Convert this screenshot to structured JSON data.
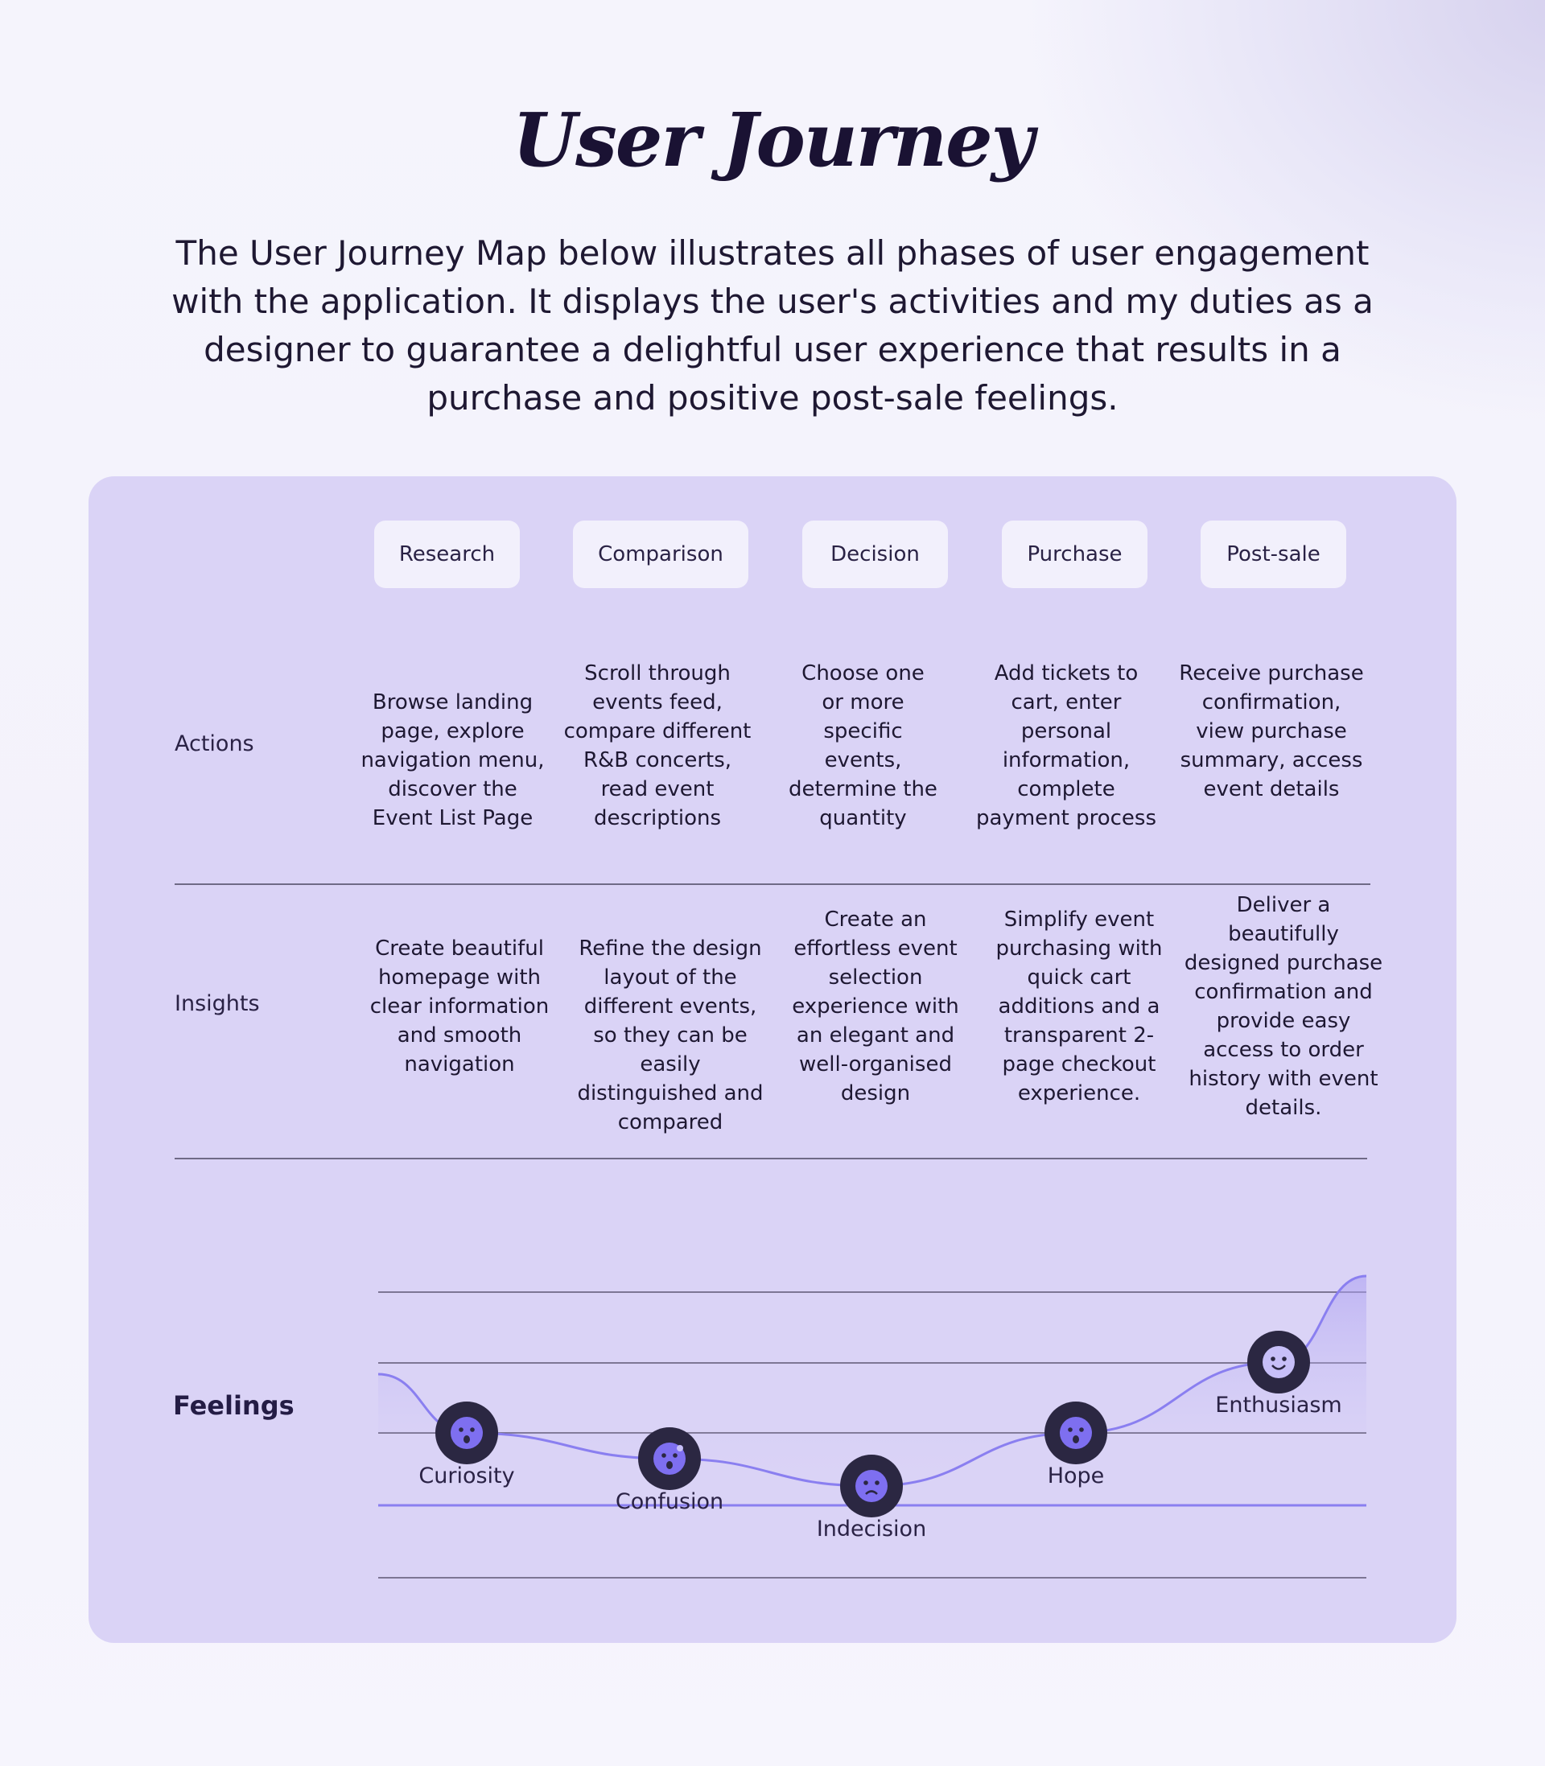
{
  "header": {
    "title": "User Journey",
    "intro": "The User Journey Map below illustrates all phases of user engagement with the application. It displays the user's activities and my duties as a designer to guarantee a delightful user experience that results in a purchase and positive post-sale feelings."
  },
  "phases": [
    "Research",
    "Comparison",
    "Decision",
    "Purchase",
    "Post-sale"
  ],
  "rows": {
    "actions_label": "Actions",
    "insights_label": "Insights",
    "feelings_label": "Feelings"
  },
  "actions": [
    "Browse landing page, explore navigation menu, discover the Event List Page",
    "Scroll through events feed, compare different R&B concerts, read event descriptions",
    "Choose one or more specific events, determine the quantity",
    "Add tickets to cart, enter personal information, complete payment process",
    "Receive purchase confirmation, view purchase summary, access event details"
  ],
  "insights": [
    "Create beautiful homepage with clear information and smooth navigation",
    "Refine the design layout of the different events, so they can be easily distinguished and compared",
    "Create an effortless event selection experience with an elegant and well-organised design",
    "Simplify event purchasing with quick cart additions and a transparent 2-page checkout experience.",
    "Deliver a beautifully designed purchase confirmation and provide easy access to order history with event details."
  ],
  "feelings": [
    {
      "name": "Curiosity",
      "icon": "curious-face-icon",
      "level": 3
    },
    {
      "name": "Confusion",
      "icon": "confused-face-icon",
      "level": 2.5
    },
    {
      "name": "Indecision",
      "icon": "sad-face-icon",
      "level": 2
    },
    {
      "name": "Hope",
      "icon": "hopeful-face-icon",
      "level": 3
    },
    {
      "name": "Enthusiasm",
      "icon": "happy-face-icon",
      "level": 4
    }
  ],
  "colors": {
    "card": "#dad3f6",
    "accent_line": "#8a7ff0",
    "emoji_bg": "#2b2742",
    "emoji_face": "#7e6ff0"
  }
}
